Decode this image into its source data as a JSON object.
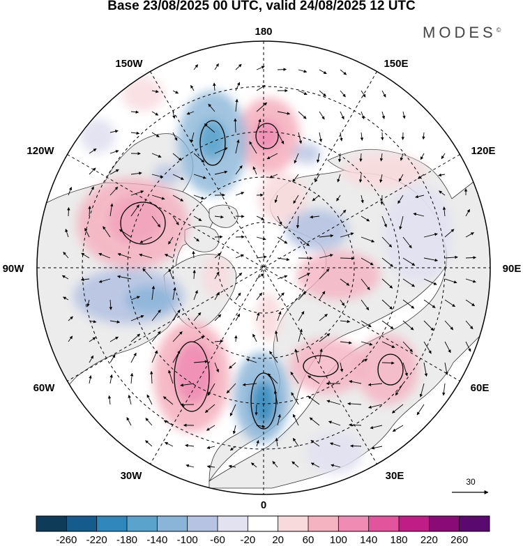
{
  "title": "Base 23/08/2025 00 UTC, valid 24/08/2025 12 UTC",
  "brand": "MODES",
  "brand_mark": "©",
  "longitude_labels": {
    "top": "180",
    "upper_left": "150W",
    "upper_right": "150E",
    "left_upper": "120W",
    "right_upper": "120E",
    "left": "90W",
    "right": "90E",
    "left_lower": "60W",
    "right_lower": "60E",
    "lower_left": "30W",
    "lower_right": "30E",
    "bottom": "0"
  },
  "vector_scale": {
    "label": "30",
    "icon": "arrow-right-icon"
  },
  "colorbar": {
    "labels": [
      "-260",
      "-220",
      "-180",
      "-140",
      "-100",
      "-60",
      "-20",
      "20",
      "60",
      "100",
      "140",
      "180",
      "220",
      "260"
    ],
    "colors": [
      "#0d3b58",
      "#155c8c",
      "#2f87bb",
      "#5aa3cc",
      "#8bb5d8",
      "#b6c3e2",
      "#e2e2f1",
      "#ffffff",
      "#f8dadd",
      "#f5b2c0",
      "#f08bb4",
      "#e2559d",
      "#c01e86",
      "#8a0a78",
      "#5a0a6e"
    ]
  },
  "colors": {
    "land": "#ececec",
    "ocean": "#ffffff",
    "grid": "#000000"
  },
  "anomaly_fields": [
    {
      "name": "pos-ne-pacific",
      "value": 90
    },
    {
      "name": "neg-gulf-alaska",
      "value": -160
    },
    {
      "name": "pos-bering",
      "value": 120
    },
    {
      "name": "neg-canada-east",
      "value": -110
    },
    {
      "name": "pos-north-atlantic",
      "value": 150
    },
    {
      "name": "neg-west-europe",
      "value": -170
    },
    {
      "name": "pos-russia",
      "value": 90
    },
    {
      "name": "pos-kazakhstan",
      "value": 80
    },
    {
      "name": "pos-siberia",
      "value": 80
    },
    {
      "name": "neg-central-siberia",
      "value": -70
    }
  ]
}
